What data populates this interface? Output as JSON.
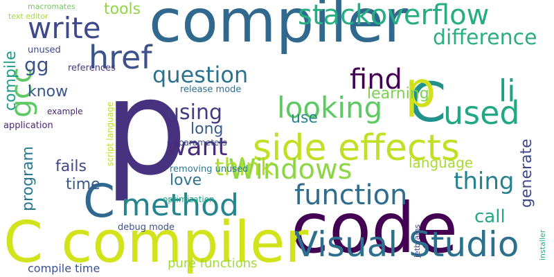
{
  "words": [
    {
      "text": "compiler",
      "color": "#31688e"
    },
    {
      "text": "p",
      "color": "#46327e"
    },
    {
      "text": "code",
      "color": "#440154"
    },
    {
      "text": "C compiler",
      "color": "#d2e21b"
    },
    {
      "text": "side effects",
      "color": "#c2df23"
    },
    {
      "text": "Visual Studio",
      "color": "#2d708e"
    },
    {
      "text": "Windows",
      "color": "#8ed645"
    },
    {
      "text": "stackoverflow",
      "color": "#26ad81"
    },
    {
      "text": "method",
      "color": "#25858e"
    },
    {
      "text": "function",
      "color": "#2f6c8e"
    },
    {
      "text": "href",
      "color": "#3b528b"
    },
    {
      "text": "write",
      "color": "#3e4a89"
    },
    {
      "text": "question",
      "color": "#2c728e"
    },
    {
      "text": "looking",
      "color": "#5ec962"
    },
    {
      "text": "C",
      "color": "#21918c"
    },
    {
      "text": "C",
      "color": "#31688e"
    },
    {
      "text": "used",
      "color": "#22a785"
    },
    {
      "text": "p",
      "color": "#d0e11c"
    },
    {
      "text": "difference",
      "color": "#2ab07f"
    },
    {
      "text": "find",
      "color": "#440154"
    },
    {
      "text": "li",
      "color": "#1fa187"
    },
    {
      "text": "want",
      "color": "#472d7b"
    },
    {
      "text": "gcc",
      "color": "#5ec962"
    },
    {
      "text": "think",
      "color": "#addc30"
    },
    {
      "text": "thing",
      "color": "#26818e"
    },
    {
      "text": "using",
      "color": "#443983"
    },
    {
      "text": "tools",
      "color": "#8fd744"
    },
    {
      "text": "gg",
      "color": "#3b528b"
    },
    {
      "text": "compile",
      "color": "#1e9b8a"
    },
    {
      "text": "know",
      "color": "#39568c"
    },
    {
      "text": "program",
      "color": "#2a788e"
    },
    {
      "text": "long",
      "color": "#365c8d"
    },
    {
      "text": "love",
      "color": "#2c728e"
    },
    {
      "text": "time",
      "color": "#38588c"
    },
    {
      "text": "fails",
      "color": "#404688"
    },
    {
      "text": "generate",
      "color": "#3e4a89"
    },
    {
      "text": "language",
      "color": "#a8db34"
    },
    {
      "text": "call",
      "color": "#22a785"
    },
    {
      "text": "learning",
      "color": "#7ad151"
    },
    {
      "text": "use",
      "color": "#25848e"
    },
    {
      "text": "pure functions",
      "color": "#a2da37"
    },
    {
      "text": "compile time",
      "color": "#3b528b"
    },
    {
      "text": "release mode",
      "color": "#2f6c8e"
    },
    {
      "text": "debug mode",
      "color": "#3b528b"
    },
    {
      "text": "macromates",
      "color": "#6ece58"
    },
    {
      "text": "text editor",
      "color": "#a5db36"
    },
    {
      "text": "unused",
      "color": "#3f4788"
    },
    {
      "text": "references",
      "color": "#453781"
    },
    {
      "text": "removing unused",
      "color": "#2a788e"
    },
    {
      "text": "optimization",
      "color": "#22a785"
    },
    {
      "text": "parameters",
      "color": "#3d4e8a"
    },
    {
      "text": "application",
      "color": "#482576"
    },
    {
      "text": "example",
      "color": "#482475"
    },
    {
      "text": "script language",
      "color": "#bddf26"
    },
    {
      "text": "jetbrains",
      "color": "#414487"
    },
    {
      "text": "installer",
      "color": "#2ab07f"
    },
    {
      "text": "generate",
      "color": "#3e4a89"
    }
  ]
}
